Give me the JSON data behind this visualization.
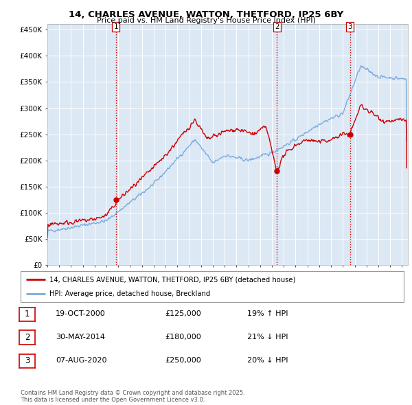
{
  "title_line1": "14, CHARLES AVENUE, WATTON, THETFORD, IP25 6BY",
  "title_line2": "Price paid vs. HM Land Registry's House Price Index (HPI)",
  "ylabel_ticks": [
    "£0",
    "£50K",
    "£100K",
    "£150K",
    "£200K",
    "£250K",
    "£300K",
    "£350K",
    "£400K",
    "£450K"
  ],
  "ytick_values": [
    0,
    50000,
    100000,
    150000,
    200000,
    250000,
    300000,
    350000,
    400000,
    450000
  ],
  "ylim": [
    0,
    460000
  ],
  "xlim_start": 1995.0,
  "xlim_end": 2025.5,
  "red_line_color": "#cc0000",
  "blue_line_color": "#7aaadd",
  "chart_bg": "#dde8f5",
  "vline_color": "#cc0000",
  "grid_color": "#ffffff",
  "bg_color": "#ffffff",
  "sale_dates": [
    2000.8,
    2014.42,
    2020.6
  ],
  "sale_prices": [
    125000,
    180000,
    250000
  ],
  "sale_labels": [
    "1",
    "2",
    "3"
  ],
  "legend_entries": [
    "14, CHARLES AVENUE, WATTON, THETFORD, IP25 6BY (detached house)",
    "HPI: Average price, detached house, Breckland"
  ],
  "table_rows": [
    {
      "num": "1",
      "date": "19-OCT-2000",
      "price": "£125,000",
      "hpi": "19% ↑ HPI"
    },
    {
      "num": "2",
      "date": "30-MAY-2014",
      "price": "£180,000",
      "hpi": "21% ↓ HPI"
    },
    {
      "num": "3",
      "date": "07-AUG-2020",
      "price": "£250,000",
      "hpi": "20% ↓ HPI"
    }
  ],
  "footnote": "Contains HM Land Registry data © Crown copyright and database right 2025.\nThis data is licensed under the Open Government Licence v3.0."
}
